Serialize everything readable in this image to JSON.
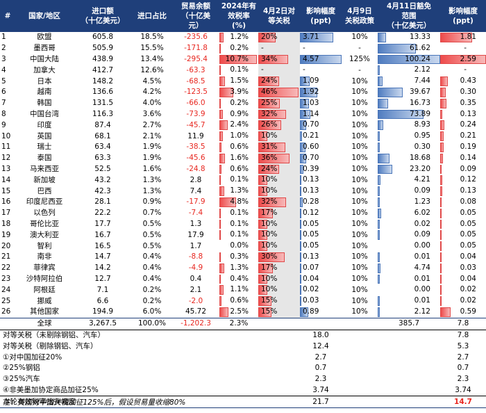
{
  "headers": [
    "#",
    "国家/地区",
    "进口额\n（十亿美元）",
    "进口占比",
    "贸易余额\n（十亿美\n元）",
    "2024年有\n效税率\n(%)",
    "4月2日对\n等关税",
    "影响幅度\n(ppt)",
    "4月9日\n关税政策",
    "4月11日豁免\n范围\n（十亿美元）",
    "影响幅度\n(ppt)"
  ],
  "rows": [
    {
      "idx": "1",
      "country": "欧盟",
      "imports": "605.8",
      "share": "18.5%",
      "balance": "-235.6",
      "eff": "1.2%",
      "rec": "20%",
      "imp1": "3.71",
      "apr9": "10%",
      "exempt": "13.33",
      "imp2": "1.81"
    },
    {
      "idx": "2",
      "country": "墨西哥",
      "imports": "505.9",
      "share": "15.5%",
      "balance": "-171.8",
      "eff": "0.2%",
      "rec": "-",
      "imp1": "-",
      "apr9": "-",
      "exempt": "61.62",
      "imp2": "-"
    },
    {
      "idx": "3",
      "country": "中国大陆",
      "imports": "438.9",
      "share": "13.4%",
      "balance": "-295.4",
      "eff": "10.7%",
      "rec": "34%",
      "imp1": "4.57",
      "apr9": "125%",
      "exempt": "100.24",
      "imp2": "2.59"
    },
    {
      "idx": "4",
      "country": "加拿大",
      "imports": "412.7",
      "share": "12.6%",
      "balance": "-63.3",
      "eff": "0.1%",
      "rec": "-",
      "imp1": "-",
      "apr9": "-",
      "exempt": "2.12",
      "imp2": "-"
    },
    {
      "idx": "5",
      "country": "日本",
      "imports": "148.2",
      "share": "4.5%",
      "balance": "-68.5",
      "eff": "1.5%",
      "rec": "24%",
      "imp1": "1.09",
      "apr9": "10%",
      "exempt": "7.44",
      "imp2": "0.43"
    },
    {
      "idx": "6",
      "country": "越南",
      "imports": "136.6",
      "share": "4.2%",
      "balance": "-123.5",
      "eff": "3.9%",
      "rec": "46%",
      "imp1": "1.92",
      "apr9": "10%",
      "exempt": "39.67",
      "imp2": "0.30"
    },
    {
      "idx": "7",
      "country": "韩国",
      "imports": "131.5",
      "share": "4.0%",
      "balance": "-66.0",
      "eff": "0.2%",
      "rec": "25%",
      "imp1": "1.03",
      "apr9": "10%",
      "exempt": "16.73",
      "imp2": "0.35"
    },
    {
      "idx": "8",
      "country": "中国台湾",
      "imports": "116.3",
      "share": "3.6%",
      "balance": "-73.9",
      "eff": "0.9%",
      "rec": "32%",
      "imp1": "1.14",
      "apr9": "10%",
      "exempt": "73.89",
      "imp2": "0.13"
    },
    {
      "idx": "9",
      "country": "印度",
      "imports": "87.4",
      "share": "2.7%",
      "balance": "-45.7",
      "eff": "2.4%",
      "rec": "26%",
      "imp1": "0.70",
      "apr9": "10%",
      "exempt": "8.93",
      "imp2": "0.24"
    },
    {
      "idx": "10",
      "country": "英国",
      "imports": "68.1",
      "share": "2.1%",
      "balance": "11.9",
      "eff": "1.0%",
      "rec": "10%",
      "imp1": "0.21",
      "apr9": "10%",
      "exempt": "0.95",
      "imp2": "0.21"
    },
    {
      "idx": "11",
      "country": "瑞士",
      "imports": "63.4",
      "share": "1.9%",
      "balance": "-38.5",
      "eff": "0.6%",
      "rec": "31%",
      "imp1": "0.60",
      "apr9": "10%",
      "exempt": "0.30",
      "imp2": "0.19"
    },
    {
      "idx": "12",
      "country": "泰国",
      "imports": "63.3",
      "share": "1.9%",
      "balance": "-45.6",
      "eff": "1.6%",
      "rec": "36%",
      "imp1": "0.70",
      "apr9": "10%",
      "exempt": "18.68",
      "imp2": "0.14"
    },
    {
      "idx": "13",
      "country": "马来西亚",
      "imports": "52.5",
      "share": "1.6%",
      "balance": "-24.8",
      "eff": "0.6%",
      "rec": "24%",
      "imp1": "0.39",
      "apr9": "10%",
      "exempt": "23.20",
      "imp2": "0.09"
    },
    {
      "idx": "14",
      "country": "新加坡",
      "imports": "43.2",
      "share": "1.3%",
      "balance": "2.8",
      "eff": "0.1%",
      "rec": "10%",
      "imp1": "0.13",
      "apr9": "10%",
      "exempt": "4.21",
      "imp2": "0.12"
    },
    {
      "idx": "15",
      "country": "巴西",
      "imports": "42.3",
      "share": "1.3%",
      "balance": "7.4",
      "eff": "1.3%",
      "rec": "10%",
      "imp1": "0.13",
      "apr9": "10%",
      "exempt": "0.09",
      "imp2": "0.13"
    },
    {
      "idx": "16",
      "country": "印度尼西亚",
      "imports": "28.1",
      "share": "0.9%",
      "balance": "-17.9",
      "eff": "4.8%",
      "rec": "32%",
      "imp1": "0.28",
      "apr9": "10%",
      "exempt": "1.23",
      "imp2": "0.08"
    },
    {
      "idx": "17",
      "country": "以色列",
      "imports": "22.2",
      "share": "0.7%",
      "balance": "-7.4",
      "eff": "0.1%",
      "rec": "17%",
      "imp1": "0.12",
      "apr9": "10%",
      "exempt": "6.02",
      "imp2": "0.05"
    },
    {
      "idx": "18",
      "country": "哥伦比亚",
      "imports": "17.7",
      "share": "0.5%",
      "balance": "1.3",
      "eff": "0.1%",
      "rec": "10%",
      "imp1": "0.05",
      "apr9": "10%",
      "exempt": "0.02",
      "imp2": "0.05"
    },
    {
      "idx": "19",
      "country": "澳大利亚",
      "imports": "16.7",
      "share": "0.5%",
      "balance": "17.9",
      "eff": "0.1%",
      "rec": "10%",
      "imp1": "0.05",
      "apr9": "10%",
      "exempt": "0.09",
      "imp2": "0.05"
    },
    {
      "idx": "20",
      "country": "智利",
      "imports": "16.5",
      "share": "0.5%",
      "balance": "1.7",
      "eff": "0.0%",
      "rec": "10%",
      "imp1": "0.05",
      "apr9": "10%",
      "exempt": "0.00",
      "imp2": "0.05"
    },
    {
      "idx": "21",
      "country": "南非",
      "imports": "14.7",
      "share": "0.4%",
      "balance": "-8.8",
      "eff": "0.3%",
      "rec": "30%",
      "imp1": "0.13",
      "apr9": "10%",
      "exempt": "0.01",
      "imp2": "0.04"
    },
    {
      "idx": "22",
      "country": "菲律宾",
      "imports": "14.2",
      "share": "0.4%",
      "balance": "-4.9",
      "eff": "1.3%",
      "rec": "17%",
      "imp1": "0.07",
      "apr9": "10%",
      "exempt": "4.74",
      "imp2": "0.03"
    },
    {
      "idx": "23",
      "country": "沙特阿拉伯",
      "imports": "12.7",
      "share": "0.4%",
      "balance": "0.4",
      "eff": "0.4%",
      "rec": "10%",
      "imp1": "0.04",
      "apr9": "10%",
      "exempt": "0.01",
      "imp2": "0.04"
    },
    {
      "idx": "24",
      "country": "阿根廷",
      "imports": "7.1",
      "share": "0.2%",
      "balance": "2.1",
      "eff": "1.1%",
      "rec": "10%",
      "imp1": "0.02",
      "apr9": "10%",
      "exempt": "0.00",
      "imp2": "0.02"
    },
    {
      "idx": "25",
      "country": "挪威",
      "imports": "6.6",
      "share": "0.2%",
      "balance": "-2.0",
      "eff": "0.6%",
      "rec": "15%",
      "imp1": "0.03",
      "apr9": "10%",
      "exempt": "0.01",
      "imp2": "0.02"
    },
    {
      "idx": "26",
      "country": "其他国家",
      "imports": "194.9",
      "share": "6.0%",
      "balance": "45.72",
      "eff": "2.5%",
      "rec": "15%",
      "imp1": "0.89",
      "apr9": "10%",
      "exempt": "2.12",
      "imp2": "0.59"
    }
  ],
  "total": {
    "label": "全球",
    "imports": "3,267.5",
    "share": "100.0%",
    "balance": "-1,202.3",
    "eff": "2.3%",
    "exempt": "385.7",
    "imp2": "7.8"
  },
  "summary": [
    {
      "label": "对等关税（未剔除钢铝、汽车）",
      "imp1": "18.0",
      "imp2": "7.8"
    },
    {
      "label": "对等关税（剔除钢铝、汽车）",
      "imp1": "12.4",
      "imp2": "5.3"
    },
    {
      "label": "①对中国加征20%",
      "imp1": "2.7",
      "imp2": "2.7"
    },
    {
      "label": "②25%钢铝",
      "imp1": "0.7",
      "imp2": "0.7"
    },
    {
      "label": "③25%汽车",
      "imp1": "2.3",
      "imp2": "2.3"
    },
    {
      "label": "④非美墨加协定商品加征25%",
      "imp1": "3.74",
      "imp2": "3.74"
    }
  ],
  "effect": {
    "label": "本轮有效税率抬升幅度",
    "imp1": "21.7",
    "imp2": "14.7"
  },
  "note": "注：美国对中国关税加征125%后，假设贸易量收缩80%",
  "colors": {
    "header_bg": "#1f3f7a",
    "negative": "#e8261f",
    "bar_red": "#ee4b4b",
    "bar_blue": "#4f7cc0",
    "grey_cell": "#e6e6e6"
  }
}
